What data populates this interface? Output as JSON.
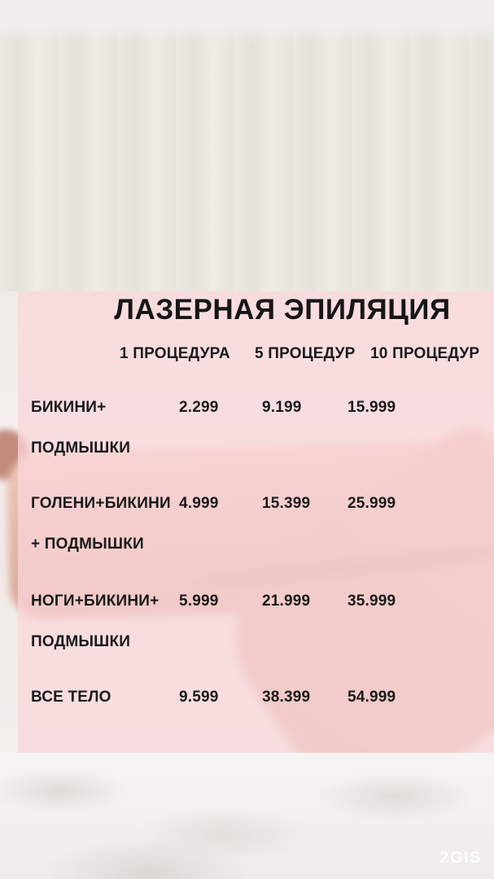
{
  "panel": {
    "title": "ЛАЗЕРНАЯ ЭПИЛЯЦИЯ",
    "columns": [
      "1 ПРОЦЕДУРА",
      "5 ПРОЦЕДУР",
      "10 ПРОЦЕДУР"
    ],
    "rows": [
      {
        "service_line1": "БИКИНИ+",
        "service_line2": "ПОДМЫШКИ",
        "prices": [
          "2.299",
          "9.199",
          "15.999"
        ]
      },
      {
        "service_line1": "ГОЛЕНИ+БИКИНИ",
        "service_line2": "+ ПОДМЫШКИ",
        "prices": [
          "4.999",
          "15.399",
          "25.999"
        ]
      },
      {
        "service_line1": "НОГИ+БИКИНИ+",
        "service_line2": "ПОДМЫШКИ",
        "prices": [
          "5.999",
          "21.999",
          "35.999"
        ]
      },
      {
        "service_line1": "ВСЕ ТЕЛО",
        "service_line2": "",
        "prices": [
          "9.599",
          "38.399",
          "54.999"
        ]
      }
    ]
  },
  "watermark": {
    "label": "2GIS"
  },
  "colors": {
    "panel_pink": "#f8d6da",
    "text_black": "#1a1a1a",
    "curtain_beige": "#e9e5df",
    "skin_tone": "#e4b5a5",
    "blanket_white": "#f3f1ef",
    "watermark_white": "#ffffff"
  }
}
